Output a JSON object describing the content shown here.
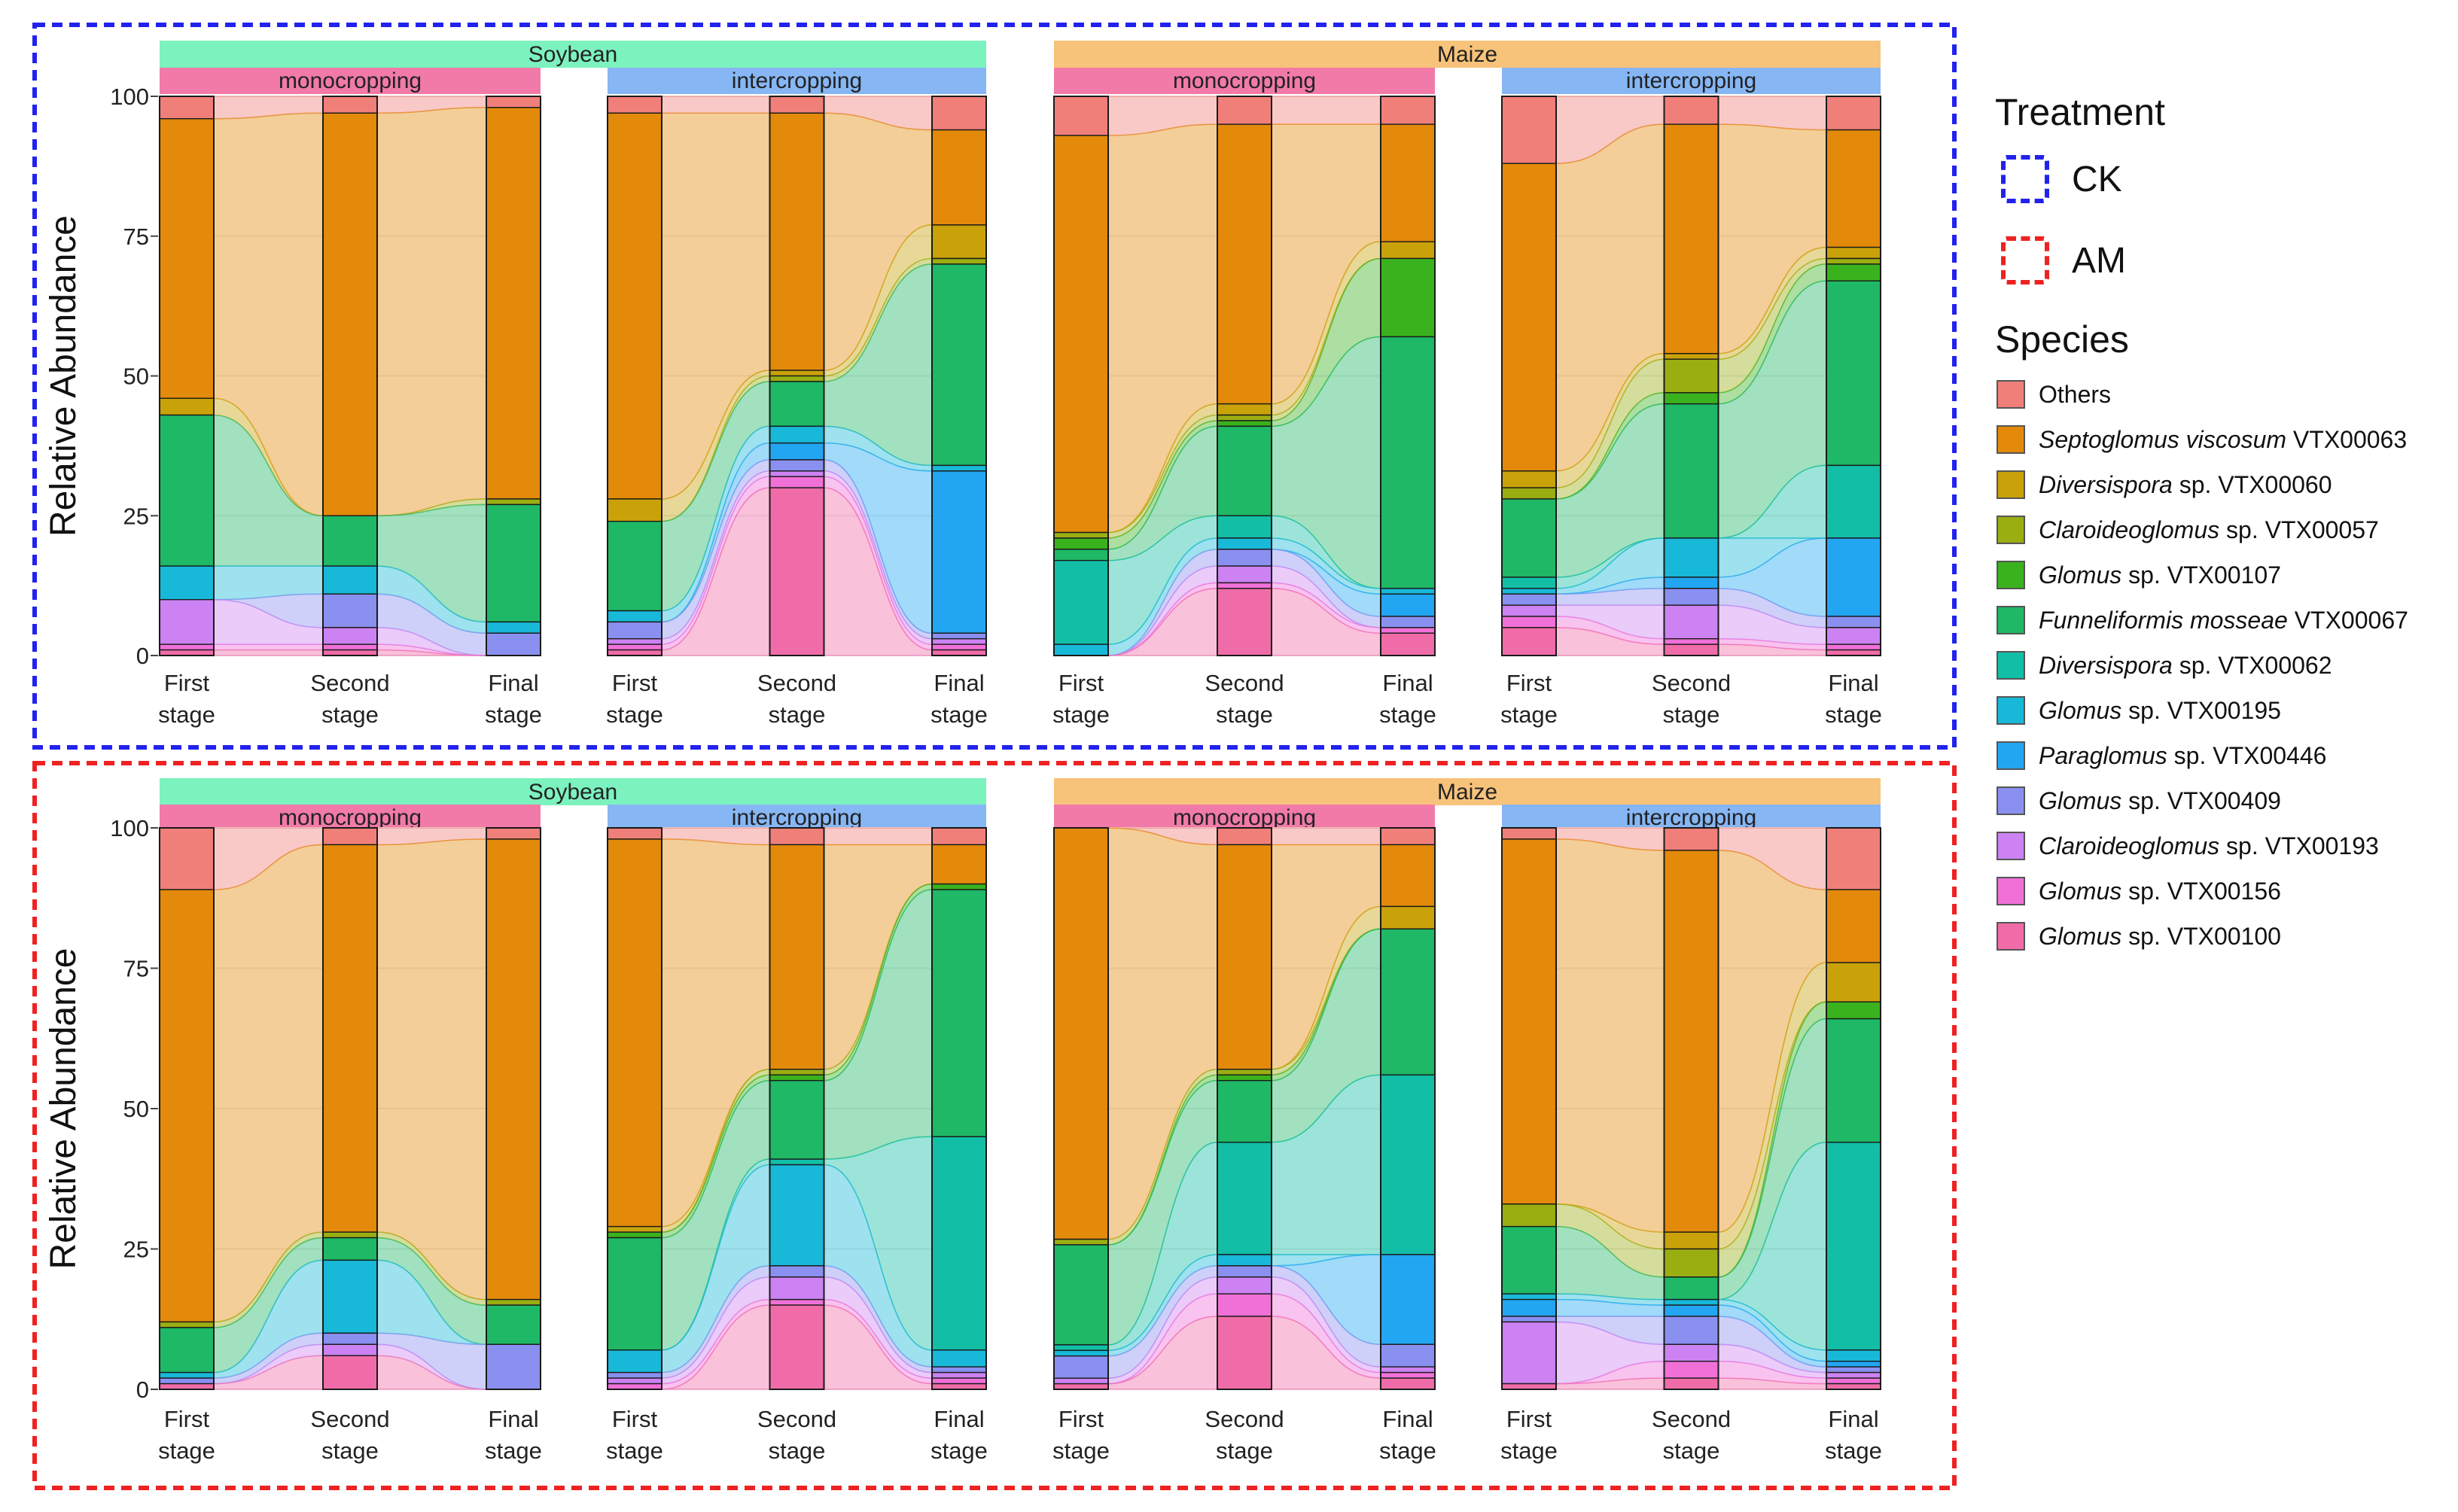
{
  "chart_data": {
    "type": "area",
    "subtype": "stacked relative abundance bars with alluvial flows",
    "ylabel": "Relative Abundance",
    "ylim": [
      0,
      100
    ],
    "yticks": [
      0,
      25,
      50,
      75,
      100
    ],
    "stage_labels": [
      [
        "First",
        "stage"
      ],
      [
        "Second",
        "stage"
      ],
      [
        "Final",
        "stage"
      ]
    ],
    "legend": {
      "treatment_title": "Treatment",
      "treatments": [
        {
          "label": "CK",
          "color": "#2222ee"
        },
        {
          "label": "AM",
          "color": "#ee2222"
        }
      ],
      "species_title": "Species",
      "species": [
        {
          "genus": "",
          "rest": "Others",
          "color": "#F07F7A"
        },
        {
          "genus": "Septoglomus viscosum",
          "rest": " VTX00063",
          "color": "#E38A0A"
        },
        {
          "genus": "Diversispora",
          "rest": " sp. VTX00060",
          "color": "#C9A209"
        },
        {
          "genus": "Claroideoglomus",
          "rest": " sp. VTX00057",
          "color": "#9AAE12"
        },
        {
          "genus": "Glomus",
          "rest": " sp. VTX00107",
          "color": "#3AB21E"
        },
        {
          "genus": "Funneliformis mosseae",
          "rest": " VTX00067",
          "color": "#1EB866"
        },
        {
          "genus": "Diversispora",
          "rest": " sp. VTX00062",
          "color": "#12BEA6"
        },
        {
          "genus": "Glomus",
          "rest": " sp. VTX00195",
          "color": "#18B8D8"
        },
        {
          "genus": "Paraglomus",
          "rest": " sp. VTX00446",
          "color": "#22A6F2"
        },
        {
          "genus": "Glomus",
          "rest": " sp. VTX00409",
          "color": "#8A90F0"
        },
        {
          "genus": "Claroideoglomus",
          "rest": " sp. VTX00193",
          "color": "#CC82F2"
        },
        {
          "genus": "Glomus",
          "rest": " sp. VTX00156",
          "color": "#F070D8"
        },
        {
          "genus": "Glomus",
          "rest": " sp. VTX00100",
          "color": "#F06CA8"
        }
      ]
    },
    "rows": [
      {
        "treatment": "CK",
        "crops": [
          {
            "crop": "Soybean",
            "color": "#7CF2BE",
            "systems": [
              {
                "system": "monocropping",
                "color": "#F17AA8",
                "stages": [
                  [
                    4,
                    50,
                    3,
                    0,
                    0,
                    27,
                    0,
                    6,
                    0,
                    0,
                    8,
                    1,
                    1
                  ],
                  [
                    3,
                    72,
                    0,
                    0,
                    0,
                    9,
                    0,
                    5,
                    0,
                    6,
                    3,
                    1,
                    1
                  ],
                  [
                    2,
                    70,
                    0,
                    1,
                    0,
                    21,
                    0,
                    2,
                    0,
                    4,
                    0,
                    0,
                    0
                  ]
                ]
              },
              {
                "system": "intercropping",
                "color": "#86B6F4",
                "stages": [
                  [
                    3,
                    69,
                    4,
                    0,
                    0,
                    16,
                    0,
                    2,
                    0,
                    3,
                    1,
                    1,
                    1
                  ],
                  [
                    3,
                    46,
                    1,
                    1,
                    0,
                    8,
                    0,
                    3,
                    3,
                    2,
                    1,
                    2,
                    30
                  ],
                  [
                    6,
                    17,
                    6,
                    1,
                    0,
                    36,
                    0,
                    1,
                    29,
                    1,
                    1,
                    1,
                    1
                  ]
                ]
              }
            ]
          },
          {
            "crop": "Maize",
            "color": "#F7C27A",
            "systems": [
              {
                "system": "monocropping",
                "color": "#F17AA8",
                "stages": [
                  [
                    7,
                    71,
                    0,
                    1,
                    2,
                    2,
                    15,
                    2,
                    0,
                    0,
                    0,
                    0,
                    0
                  ],
                  [
                    5,
                    50,
                    2,
                    1,
                    1,
                    16,
                    4,
                    2,
                    0,
                    3,
                    3,
                    1,
                    12
                  ],
                  [
                    5,
                    21,
                    3,
                    0,
                    14,
                    45,
                    0,
                    1,
                    4,
                    2,
                    0,
                    1,
                    4
                  ]
                ]
              },
              {
                "system": "intercropping",
                "color": "#86B6F4",
                "stages": [
                  [
                    12,
                    55,
                    3,
                    2,
                    0,
                    14,
                    2,
                    1,
                    0,
                    2,
                    2,
                    2,
                    5
                  ],
                  [
                    5,
                    41,
                    1,
                    6,
                    2,
                    24,
                    0,
                    7,
                    2,
                    3,
                    6,
                    1,
                    2
                  ],
                  [
                    6,
                    21,
                    2,
                    1,
                    3,
                    33,
                    13,
                    0,
                    14,
                    2,
                    3,
                    1,
                    1
                  ]
                ]
              }
            ]
          }
        ]
      },
      {
        "treatment": "AM",
        "crops": [
          {
            "crop": "Soybean",
            "color": "#7CF2BE",
            "systems": [
              {
                "system": "monocropping",
                "color": "#F17AA8",
                "stages": [
                  [
                    11,
                    77,
                    0,
                    1,
                    0,
                    8,
                    0,
                    1,
                    0,
                    1,
                    0,
                    0,
                    1
                  ],
                  [
                    3,
                    69,
                    0,
                    1,
                    0,
                    4,
                    0,
                    13,
                    0,
                    2,
                    2,
                    0,
                    6
                  ],
                  [
                    2,
                    82,
                    0,
                    1,
                    0,
                    7,
                    0,
                    0,
                    0,
                    8,
                    0,
                    0,
                    0
                  ]
                ]
              },
              {
                "system": "intercropping",
                "color": "#86B6F4",
                "stages": [
                  [
                    2,
                    69,
                    1,
                    0,
                    1,
                    20,
                    0,
                    4,
                    0,
                    1,
                    1,
                    1,
                    0
                  ],
                  [
                    3,
                    40,
                    0,
                    1,
                    1,
                    14,
                    1,
                    18,
                    0,
                    2,
                    4,
                    1,
                    15
                  ],
                  [
                    3,
                    7,
                    0,
                    0,
                    1,
                    44,
                    38,
                    3,
                    0,
                    1,
                    1,
                    1,
                    1
                  ]
                ]
              }
            ]
          },
          {
            "crop": "Maize",
            "color": "#F7C27A",
            "systems": [
              {
                "system": "monocropping",
                "color": "#F17AA8",
                "stages": [
                  [
                    0,
                    74,
                    0,
                    1,
                    0,
                    18,
                    1,
                    1,
                    0,
                    4,
                    1,
                    0,
                    1
                  ],
                  [
                    3,
                    40,
                    0,
                    1,
                    1,
                    11,
                    20,
                    2,
                    0,
                    2,
                    3,
                    4,
                    13
                  ],
                  [
                    3,
                    11,
                    4,
                    0,
                    0,
                    26,
                    32,
                    0,
                    16,
                    4,
                    1,
                    1,
                    2
                  ]
                ]
              },
              {
                "system": "intercropping",
                "color": "#86B6F4",
                "stages": [
                  [
                    2,
                    65,
                    0,
                    4,
                    0,
                    12,
                    0,
                    1,
                    3,
                    1,
                    11,
                    0,
                    1
                  ],
                  [
                    4,
                    68,
                    3,
                    5,
                    0,
                    4,
                    0,
                    1,
                    2,
                    5,
                    3,
                    3,
                    2
                  ],
                  [
                    11,
                    13,
                    7,
                    0,
                    3,
                    22,
                    37,
                    2,
                    1,
                    1,
                    1,
                    1,
                    1
                  ]
                ]
              }
            ]
          }
        ]
      }
    ]
  }
}
